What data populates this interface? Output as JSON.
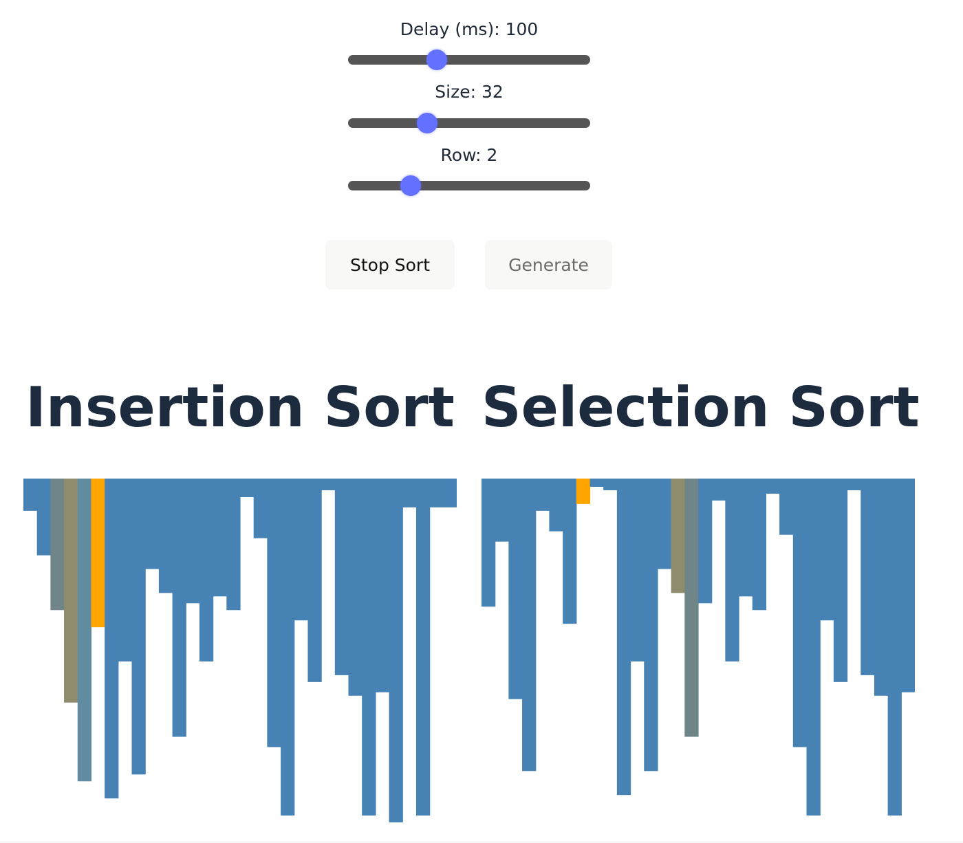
{
  "controls": {
    "delay": {
      "label": "Delay (ms): 100",
      "value": 100,
      "min": 0,
      "max": 500
    },
    "size": {
      "label": "Size: 32",
      "value": 32,
      "min": 10,
      "max": 160
    },
    "row": {
      "label": "Row: 2",
      "value": 2,
      "min": 1,
      "max": 20
    }
  },
  "buttons": {
    "stop_label": "Stop Sort",
    "generate_label": "Generate"
  },
  "colors": {
    "default": "#4682b4",
    "compare": "#ffa500",
    "key": "#8f8c6e",
    "shifting": "#6f8587",
    "shifted": "#628ca2",
    "accent": "#6470ff"
  },
  "chart_data": [
    {
      "type": "bar",
      "title": "Insertion Sort",
      "ylim": [
        0,
        100
      ],
      "values": [
        7,
        20,
        36,
        63,
        86,
        41,
        91,
        51,
        84,
        24,
        31,
        73,
        34,
        51,
        32,
        36,
        3,
        15,
        76,
        96,
        39,
        57,
        1,
        55,
        61,
        96,
        60,
        98,
        6,
        96,
        6,
        6
      ],
      "states": [
        "",
        "",
        "shifting",
        "key",
        "shifted",
        "compare",
        "",
        "",
        "",
        "",
        "",
        "",
        "",
        "",
        "",
        "",
        "",
        "",
        "",
        "",
        "",
        "",
        "",
        "",
        "",
        "",
        "",
        "",
        "",
        "",
        "",
        ""
      ]
    },
    {
      "type": "bar",
      "title": "Selection Sort",
      "ylim": [
        0,
        100
      ],
      "values": [
        35,
        16,
        62,
        83,
        7,
        13,
        40,
        5,
        0,
        1,
        90,
        51,
        83,
        24,
        31,
        73,
        34,
        4,
        51,
        32,
        36,
        2,
        14,
        76,
        96,
        39,
        57,
        1,
        55,
        61,
        96,
        60
      ],
      "states": [
        "",
        "",
        "",
        "",
        "",
        "",
        "",
        "compare",
        "",
        "",
        "",
        "",
        "",
        "",
        "key",
        "shifting",
        "",
        "",
        "",
        "",
        "",
        "",
        "",
        "",
        "",
        "",
        "",
        "",
        "",
        "",
        "",
        ""
      ]
    }
  ]
}
